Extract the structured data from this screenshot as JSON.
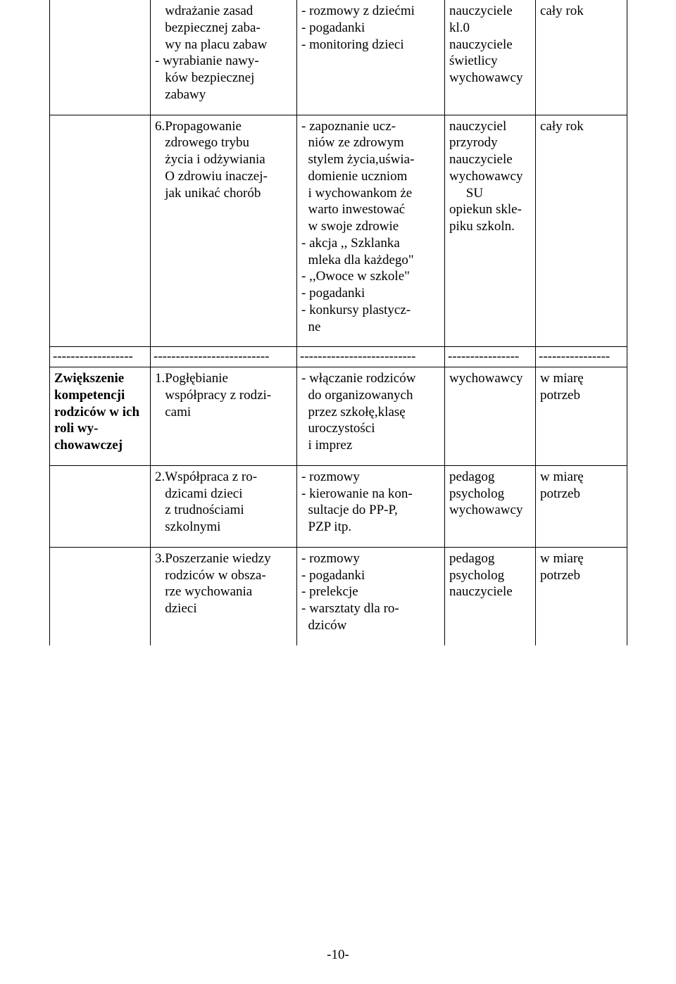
{
  "table": {
    "row1": {
      "c1": "",
      "c2": "   wdrażanie zasad\n   bezpiecznej zaba-\n   wy na placu zabaw\n- wyrabianie nawy-\n   ków bezpiecznej\n   zabawy",
      "c3": "- rozmowy z dziećmi\n- pogadanki\n- monitoring dzieci",
      "c4": "nauczyciele\nkl.0\nnauczyciele\nświetlicy\nwychowawcy",
      "c5": "cały rok"
    },
    "row2": {
      "c1": "",
      "c2": "6.Propagowanie\n   zdrowego trybu\n   życia i odżywiania\n   O zdrowiu inaczej-\n   jak unikać chorób",
      "c3": "- zapoznanie ucz-\n  niów ze zdrowym\n  stylem życia,uświa-\n  domienie uczniom\n  i wychowankom że\n  warto inwestować\n  w swoje zdrowie\n- akcja ,, Szklanka\n  mleka dla każdego\"\n- ,,Owoce w szkole\"\n- pogadanki\n- konkursy plastycz-\n  ne",
      "c4": "nauczyciel\nprzyrody\nnauczyciele\nwychowawcy\n     SU\nopiekun skle-\npiku szkoln.",
      "c5": "cały rok"
    },
    "divider": {
      "c1": "------------------",
      "c2": "--------------------------",
      "c3": "--------------------------",
      "c4": "----------------",
      "c5": "----------------"
    },
    "row3": {
      "c1": "Zwiększenie kompetencji rodziców w ich roli wy-chowawczej",
      "c2": "1.Pogłębianie\n   współpracy z rodzi-\n   cami",
      "c3": "- włączanie rodziców\n  do organizowanych\n  przez szkołę,klasę\n  uroczystości\n  i imprez",
      "c4": "wychowawcy",
      "c5": "w miarę\npotrzeb"
    },
    "row4": {
      "c1": "",
      "c2": "2.Współpraca z ro-\n   dzicami dzieci\n   z trudnościami\n   szkolnymi",
      "c3": "- rozmowy\n- kierowanie na kon-\n  sultacje do PP-P,\n  PZP itp.",
      "c4": "pedagog\npsycholog\nwychowawcy",
      "c5": "w miarę\npotrzeb"
    },
    "row5": {
      "c1": "",
      "c2": "3.Poszerzanie wiedzy\n   rodziców w obsza-\n   rze wychowania\n   dzieci",
      "c3": "- rozmowy\n- pogadanki\n- prelekcje\n- warsztaty dla ro-\n  dziców",
      "c4": "pedagog\npsycholog\nnauczyciele",
      "c5": "w miarę\npotrzeb"
    }
  },
  "page_number": "-10-"
}
